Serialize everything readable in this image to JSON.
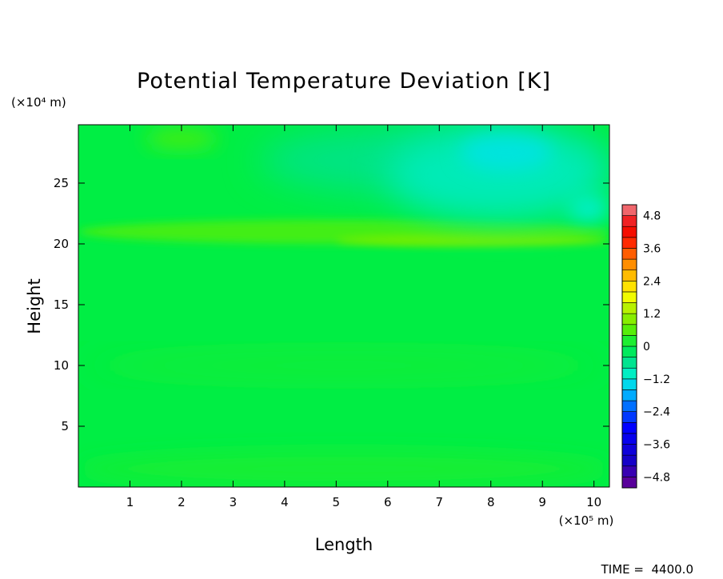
{
  "chart_data": {
    "type": "heatmap",
    "title": "Potential Temperature Deviation [K]",
    "xlabel": "Length",
    "ylabel": "Height",
    "x_unit": "(×10⁵ m)",
    "y_unit": "(×10⁴ m)",
    "x_ticks": [
      1,
      2,
      3,
      4,
      5,
      6,
      7,
      8,
      9,
      10
    ],
    "y_ticks": [
      5,
      10,
      15,
      20,
      25
    ],
    "xlim": [
      0,
      10.3
    ],
    "ylim": [
      0,
      29.8
    ],
    "colorbar": {
      "labels": [
        "4.8",
        "3.6",
        "2.4",
        "1.2",
        "0",
        "−1.2",
        "−2.4",
        "−3.6",
        "−4.8"
      ],
      "label_values": [
        4.8,
        3.6,
        2.4,
        1.2,
        0,
        -1.2,
        -2.4,
        -3.6,
        -4.8
      ],
      "range": [
        -5.2,
        5.2
      ],
      "levels": 26
    },
    "fields": [
      {
        "desc": "background",
        "value": 0.0
      },
      {
        "desc": "low layer",
        "value": 0.15,
        "x": [
          0,
          10.3
        ],
        "y": [
          0,
          3
        ]
      },
      {
        "desc": "slight warm band",
        "value": 0.15,
        "x": [
          0,
          10.3
        ],
        "y": [
          9,
          11
        ]
      },
      {
        "desc": "warm band",
        "value": 0.45,
        "x": [
          0,
          10.3
        ],
        "y": [
          20,
          22
        ]
      },
      {
        "desc": "warm tongue",
        "value": 0.8,
        "x": [
          5,
          10.3
        ],
        "y": [
          19.8,
          20.8
        ]
      },
      {
        "desc": "warm patch",
        "value": 0.45,
        "x": [
          1.3,
          2.7
        ],
        "y": [
          27.8,
          29.5
        ]
      },
      {
        "desc": "cool region",
        "value": -0.5,
        "x": [
          3.5,
          10.3
        ],
        "y": [
          24,
          29.8
        ]
      },
      {
        "desc": "cooler region",
        "value": -0.9,
        "x": [
          6,
          10.3
        ],
        "y": [
          22,
          29.5
        ]
      },
      {
        "desc": "coldest patch",
        "value": -1.25,
        "x": [
          7.4,
          9.2
        ],
        "y": [
          26,
          29
        ]
      },
      {
        "desc": "cold edge",
        "value": -1.05,
        "x": [
          9.5,
          10.3
        ],
        "y": [
          21.8,
          24
        ]
      }
    ]
  },
  "time_label": "TIME =  4400.0"
}
